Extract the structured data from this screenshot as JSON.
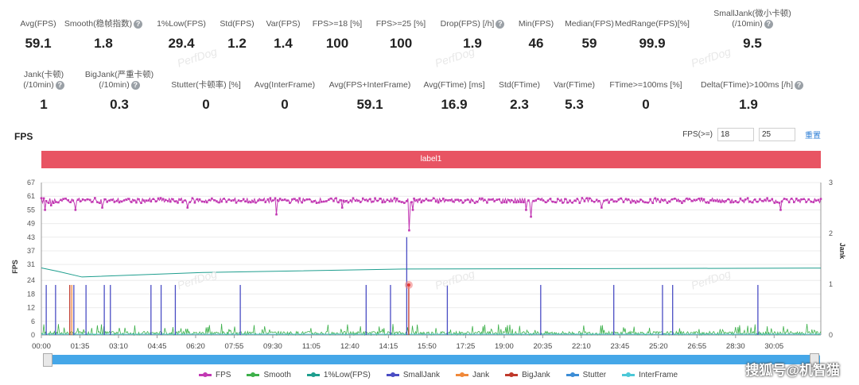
{
  "metrics_row1": [
    {
      "label": "Avg(FPS)",
      "value": "59.1",
      "help": false
    },
    {
      "label": "Smooth(稳帧指数)",
      "value": "1.8",
      "help": true
    },
    {
      "label": "1%Low(FPS)",
      "value": "29.4",
      "help": false
    },
    {
      "label": "Std(FPS)",
      "value": "1.2",
      "help": false
    },
    {
      "label": "Var(FPS)",
      "value": "1.4",
      "help": false
    },
    {
      "label": "FPS>=18 [%]",
      "value": "100",
      "help": false
    },
    {
      "label": "FPS>=25 [%]",
      "value": "100",
      "help": false
    },
    {
      "label": "Drop(FPS) [/h]",
      "value": "1.9",
      "help": true
    },
    {
      "label": "Min(FPS)",
      "value": "46",
      "help": false
    },
    {
      "label": "Median(FPS)",
      "value": "59",
      "help": false
    },
    {
      "label": "MedRange(FPS)[%]",
      "value": "99.9",
      "help": false
    },
    {
      "label": "SmallJank(微小卡顿)\n(/10min)",
      "value": "9.5",
      "help": true
    }
  ],
  "metrics_row2": [
    {
      "label": "Jank(卡顿)\n(/10min)",
      "value": "1",
      "help": true
    },
    {
      "label": "BigJank(严重卡顿)\n(/10min)",
      "value": "0.3",
      "help": true
    },
    {
      "label": "Stutter(卡顿率) [%]",
      "value": "0",
      "help": false
    },
    {
      "label": "Avg(InterFrame)",
      "value": "0",
      "help": false
    },
    {
      "label": "Avg(FPS+InterFrame)",
      "value": "59.1",
      "help": false
    },
    {
      "label": "Avg(FTime) [ms]",
      "value": "16.9",
      "help": false
    },
    {
      "label": "Std(FTime)",
      "value": "2.3",
      "help": false
    },
    {
      "label": "Var(FTime)",
      "value": "5.3",
      "help": false
    },
    {
      "label": "FTime>=100ms [%]",
      "value": "0",
      "help": false
    },
    {
      "label": "Delta(FTime)>100ms [/h]",
      "value": "1.9",
      "help": true
    }
  ],
  "section_title": "FPS",
  "fps_threshold": {
    "label": "FPS(>=)",
    "value1": "18",
    "value2": "25",
    "reset_label": "重置"
  },
  "label_bar": "label1",
  "watermark": "PerfDog",
  "credit": "搜狐号@机智猫",
  "colors": {
    "fps": "#c239b3",
    "smooth": "#3db04a",
    "low1": "#1e9e8e",
    "smalljank": "#4a4dc4",
    "jank": "#f0893a",
    "bigjank": "#c0392b",
    "stutter": "#3c8dd6",
    "interframe": "#4cc8d8",
    "label_bar": "#e85463",
    "slider": "#45a7e8"
  },
  "chart_data": {
    "type": "line",
    "y_left": {
      "label": "FPS",
      "ticks": [
        0,
        6,
        12,
        18,
        24,
        31,
        37,
        43,
        49,
        55,
        61,
        67
      ],
      "range": [
        0,
        67
      ]
    },
    "y_right": {
      "label": "Jank",
      "ticks": [
        0,
        1,
        2,
        3
      ],
      "range": [
        0,
        3
      ]
    },
    "x_ticks": [
      "00:00",
      "01:35",
      "03:10",
      "04:45",
      "06:20",
      "07:55",
      "09:30",
      "11:05",
      "12:40",
      "14:15",
      "15:50",
      "17:25",
      "19:00",
      "20:35",
      "22:10",
      "23:45",
      "25:20",
      "26:55",
      "28:30",
      "30:05"
    ],
    "x_range_seconds": [
      0,
      1920
    ],
    "legend": [
      "FPS",
      "Smooth",
      "1%Low(FPS)",
      "SmallJank",
      "Jank",
      "BigJank",
      "Stutter",
      "InterFrame"
    ],
    "series": [
      {
        "name": "FPS",
        "typical": 59,
        "min": 46,
        "dips": [
          {
            "t": 10,
            "v": 55
          },
          {
            "t": 25,
            "v": 57
          },
          {
            "t": 85,
            "v": 55
          },
          {
            "t": 150,
            "v": 56
          },
          {
            "t": 360,
            "v": 56
          },
          {
            "t": 580,
            "v": 53
          },
          {
            "t": 740,
            "v": 56
          },
          {
            "t": 905,
            "v": 46
          },
          {
            "t": 915,
            "v": 55
          },
          {
            "t": 1195,
            "v": 55
          },
          {
            "t": 1205,
            "v": 52
          },
          {
            "t": 1380,
            "v": 56
          },
          {
            "t": 1820,
            "v": 55
          }
        ]
      },
      {
        "name": "Smooth",
        "typical": 1.5,
        "max": 6
      },
      {
        "name": "1%Low(FPS)",
        "points": [
          [
            0,
            29.5
          ],
          [
            40,
            28
          ],
          [
            100,
            25.5
          ],
          [
            400,
            27.5
          ],
          [
            900,
            29
          ],
          [
            1920,
            29.4
          ]
        ]
      },
      {
        "name": "SmallJank",
        "spikes": [
          {
            "t": 12,
            "v": 22
          },
          {
            "t": 35,
            "v": 22
          },
          {
            "t": 80,
            "v": 22
          },
          {
            "t": 110,
            "v": 22
          },
          {
            "t": 155,
            "v": 22
          },
          {
            "t": 170,
            "v": 22
          },
          {
            "t": 270,
            "v": 22
          },
          {
            "t": 295,
            "v": 22
          },
          {
            "t": 330,
            "v": 22
          },
          {
            "t": 490,
            "v": 22
          },
          {
            "t": 800,
            "v": 22
          },
          {
            "t": 860,
            "v": 22
          },
          {
            "t": 900,
            "v": 43
          },
          {
            "t": 1000,
            "v": 22
          },
          {
            "t": 1230,
            "v": 22
          },
          {
            "t": 1410,
            "v": 22
          },
          {
            "t": 1530,
            "v": 22
          },
          {
            "t": 1555,
            "v": 22
          },
          {
            "t": 1765,
            "v": 22
          }
        ]
      },
      {
        "name": "Jank",
        "spikes": [
          {
            "t": 75,
            "v": 22
          }
        ]
      },
      {
        "name": "BigJank",
        "spikes": [
          {
            "t": 70,
            "v": 22
          },
          {
            "t": 905,
            "v": 22
          }
        ]
      },
      {
        "name": "Stutter",
        "typical": 0
      },
      {
        "name": "InterFrame",
        "typical": 0
      }
    ]
  }
}
